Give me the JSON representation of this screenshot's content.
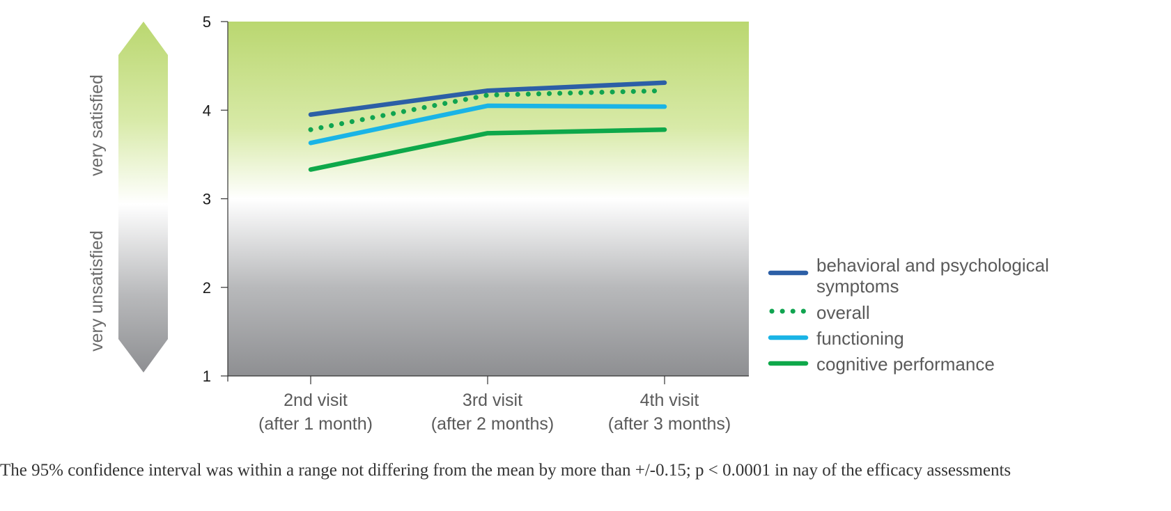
{
  "chart_data": {
    "type": "line",
    "categories": [
      [
        "2nd visit",
        "(after 1 month)"
      ],
      [
        "3rd visit",
        "(after 2 months)"
      ],
      [
        "4th visit",
        "(after 3 months)"
      ]
    ],
    "ylim": [
      1,
      5
    ],
    "yticks": [
      "1",
      "2",
      "3",
      "4",
      "5"
    ],
    "series": [
      {
        "name": "behavioral and psychological symptoms",
        "name_lines": [
          "behavioral and psychological",
          "symptoms"
        ],
        "values": [
          3.95,
          4.22,
          4.31
        ],
        "color": "#2c5fa6",
        "style": "solid"
      },
      {
        "name": "overall",
        "name_lines": [
          "overall"
        ],
        "values": [
          3.78,
          4.17,
          4.22
        ],
        "color": "#10a450",
        "style": "dotted"
      },
      {
        "name": "functioning",
        "name_lines": [
          "functioning"
        ],
        "values": [
          3.63,
          4.05,
          4.04
        ],
        "color": "#1ab4e6",
        "style": "solid"
      },
      {
        "name": "cognitive performance",
        "name_lines": [
          "cognitive performance"
        ],
        "values": [
          3.33,
          3.74,
          3.78
        ],
        "color": "#0ea84a",
        "style": "solid"
      }
    ],
    "scale_labels": {
      "top": "very satisfied",
      "bottom": "very unsatisfied"
    },
    "background": {
      "satisfied_color": "#bad770",
      "neutral_color": "#ffffff",
      "unsatisfied_color": "#8e8f92"
    },
    "legend_position": "right"
  },
  "caption": "The 95% confidence interval was within a range not differing from the mean by more than +/-0.15; p < 0.0001 in nay of the efficacy assessments"
}
